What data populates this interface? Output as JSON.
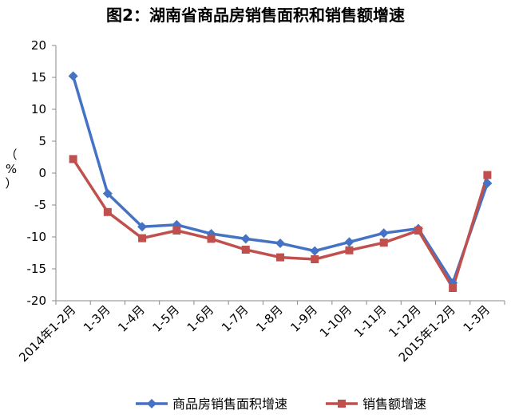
{
  "chart_data": {
    "type": "line",
    "title": "图2：湖南省商品房销售面积和销售额增速",
    "ylabel": "（%）",
    "ylim": [
      -20,
      20
    ],
    "ytick_step": 5,
    "categories": [
      "2014年1-2月",
      "1-3月",
      "1-4月",
      "1-5月",
      "1-6月",
      "1-7月",
      "1-8月",
      "1-9月",
      "1-10月",
      "1-11月",
      "1-12月",
      "2015年1-2月",
      "1-3月"
    ],
    "series": [
      {
        "name": "商品房销售面积增速",
        "color": "#4472C4",
        "marker": "diamond",
        "values": [
          15.2,
          -3.2,
          -8.4,
          -8.1,
          -9.5,
          -10.3,
          -11.0,
          -12.2,
          -10.8,
          -9.4,
          -8.7,
          -17.2,
          -1.6
        ]
      },
      {
        "name": "销售额增速",
        "color": "#C0504D",
        "marker": "square",
        "values": [
          2.2,
          -6.1,
          -10.2,
          -9.0,
          -10.3,
          -12.0,
          -13.2,
          -13.5,
          -12.1,
          -10.9,
          -9.0,
          -18.0,
          -0.3
        ]
      }
    ],
    "grid": false,
    "legend_position": "bottom"
  }
}
